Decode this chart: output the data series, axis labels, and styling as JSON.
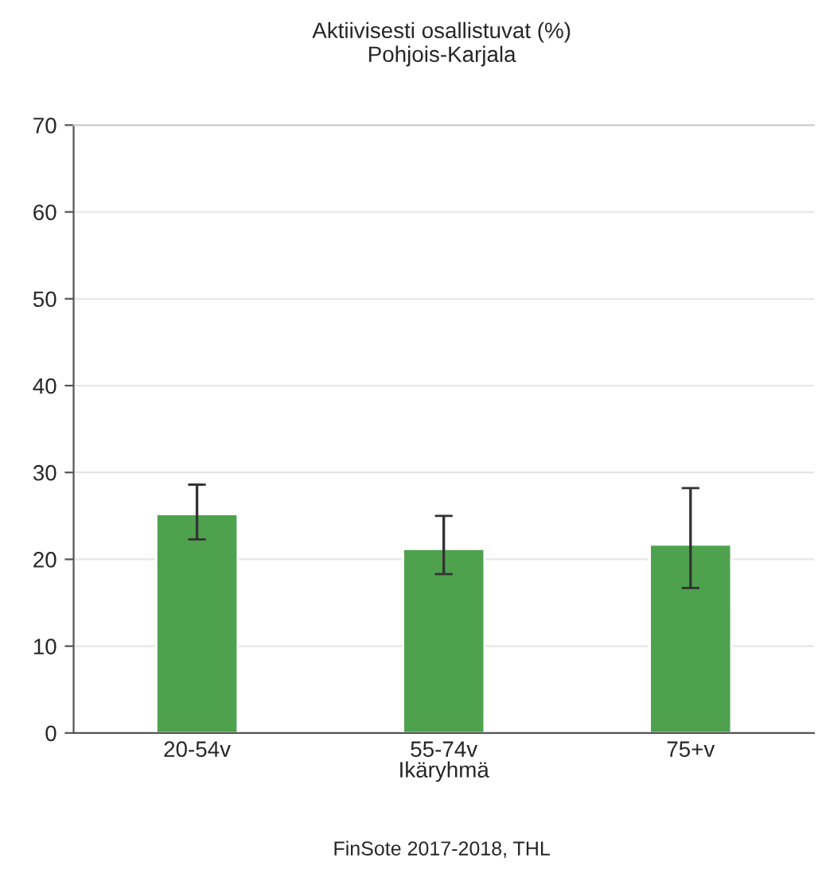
{
  "chart_data": {
    "type": "bar",
    "title": "Aktiivisesti osallistuvat (%)",
    "subtitle": "Pohjois-Karjala",
    "xlabel": "Ikäryhmä",
    "categories": [
      "20-54v",
      "55-74v",
      "75+v"
    ],
    "values": [
      25.2,
      21.2,
      21.7
    ],
    "color": "#4ea24e",
    "errors": [
      [
        22.3,
        28.6
      ],
      [
        18.3,
        25.0
      ],
      [
        16.7,
        28.2
      ]
    ],
    "ylim": [
      0,
      70
    ],
    "yticks": [
      0,
      10,
      20,
      30,
      40,
      50,
      60,
      70
    ],
    "grid": "y",
    "annotations": [
      "FinSote 2017-2018, THL"
    ]
  }
}
